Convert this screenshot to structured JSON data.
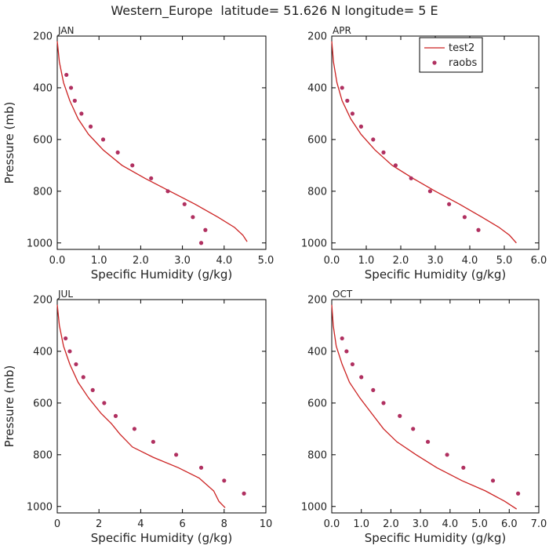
{
  "figure_title": "Western_Europe  latitude= 51.626 N longitude= 5 E",
  "colors": {
    "model": "#cc2222",
    "obs": "#b03060",
    "axis": "#000000",
    "text": "#222222"
  },
  "legend": {
    "model_label": "test2",
    "obs_label": "raobs",
    "location": "APR panel, top-right"
  },
  "chart_data": [
    {
      "type": "line",
      "panel": "JAN",
      "xlabel": "Specific Humidity (g/kg)",
      "ylabel": "Pressure (mb)",
      "xlim": [
        0,
        5.0
      ],
      "xticks": [
        0,
        1,
        2,
        3,
        4,
        5
      ],
      "xtick_labels": [
        "0.0",
        "1.0",
        "2.0",
        "3.0",
        "4.0",
        "5.0"
      ],
      "ylim": [
        200,
        1025
      ],
      "yticks": [
        200,
        400,
        600,
        800,
        1000
      ],
      "ytick_labels": [
        "200",
        "400",
        "600",
        "800",
        "1000"
      ],
      "series": [
        {
          "name": "test2",
          "kind": "line",
          "x": [
            0.0,
            0.05,
            0.15,
            0.3,
            0.5,
            0.75,
            1.1,
            1.55,
            2.1,
            2.7,
            3.3,
            3.85,
            4.25,
            4.45,
            4.55
          ],
          "y": [
            220,
            300,
            380,
            450,
            520,
            580,
            640,
            700,
            750,
            800,
            850,
            900,
            940,
            970,
            995
          ]
        },
        {
          "name": "raobs",
          "kind": "scatter",
          "x": [
            0.22,
            0.33,
            0.42,
            0.58,
            0.8,
            1.1,
            1.45,
            1.8,
            2.25,
            2.65,
            3.05,
            3.25,
            3.55,
            3.45
          ],
          "y": [
            350,
            400,
            450,
            500,
            550,
            600,
            650,
            700,
            750,
            800,
            850,
            900,
            950,
            1000
          ]
        }
      ]
    },
    {
      "type": "line",
      "panel": "APR",
      "xlabel": "Specific Humidity (g/kg)",
      "ylabel": "",
      "xlim": [
        0,
        6.0
      ],
      "xticks": [
        0,
        1,
        2,
        3,
        4,
        5,
        6
      ],
      "xtick_labels": [
        "0.0",
        "1.0",
        "2.0",
        "3.0",
        "4.0",
        "5.0",
        "6.0"
      ],
      "ylim": [
        200,
        1025
      ],
      "yticks": [
        200,
        400,
        600,
        800,
        1000
      ],
      "ytick_labels": [
        "200",
        "400",
        "600",
        "800",
        "1000"
      ],
      "show_legend": true,
      "series": [
        {
          "name": "test2",
          "kind": "line",
          "x": [
            0.0,
            0.05,
            0.15,
            0.3,
            0.55,
            0.85,
            1.25,
            1.75,
            2.35,
            3.0,
            3.7,
            4.35,
            4.85,
            5.15,
            5.35
          ],
          "y": [
            220,
            300,
            380,
            450,
            520,
            580,
            640,
            700,
            750,
            800,
            850,
            900,
            940,
            970,
            1000
          ]
        },
        {
          "name": "raobs",
          "kind": "scatter",
          "x": [
            0.3,
            0.45,
            0.6,
            0.85,
            1.2,
            1.5,
            1.85,
            2.3,
            2.85,
            3.4,
            3.85,
            4.25
          ],
          "y": [
            400,
            450,
            500,
            550,
            600,
            650,
            700,
            750,
            800,
            850,
            900,
            950
          ]
        }
      ]
    },
    {
      "type": "line",
      "panel": "JUL",
      "xlabel": "Specific Humidity (g/kg)",
      "ylabel": "Pressure (mb)",
      "xlim": [
        0,
        10
      ],
      "xticks": [
        0,
        2,
        4,
        6,
        8,
        10
      ],
      "xtick_labels": [
        "0",
        "2",
        "4",
        "6",
        "8",
        "10"
      ],
      "ylim": [
        200,
        1025
      ],
      "yticks": [
        200,
        400,
        600,
        800,
        1000
      ],
      "ytick_labels": [
        "200",
        "400",
        "600",
        "800",
        "1000"
      ],
      "series": [
        {
          "name": "test2",
          "kind": "line",
          "x": [
            0.0,
            0.1,
            0.3,
            0.6,
            1.0,
            1.5,
            2.1,
            2.6,
            3.0,
            3.6,
            4.6,
            5.8,
            6.8,
            7.5,
            7.75,
            8.05
          ],
          "y": [
            220,
            300,
            380,
            450,
            520,
            580,
            640,
            680,
            720,
            770,
            810,
            850,
            890,
            940,
            980,
            1005
          ]
        },
        {
          "name": "raobs",
          "kind": "scatter",
          "x": [
            0.4,
            0.6,
            0.9,
            1.25,
            1.7,
            2.25,
            2.8,
            3.7,
            4.6,
            5.7,
            6.9,
            8.0,
            8.95
          ],
          "y": [
            350,
            400,
            450,
            500,
            550,
            600,
            650,
            700,
            750,
            800,
            850,
            900,
            950
          ]
        }
      ]
    },
    {
      "type": "line",
      "panel": "OCT",
      "xlabel": "Specific Humidity (g/kg)",
      "ylabel": "",
      "xlim": [
        0,
        7.0
      ],
      "xticks": [
        0,
        1,
        2,
        3,
        4,
        5,
        6,
        7
      ],
      "xtick_labels": [
        "0.0",
        "1.0",
        "2.0",
        "3.0",
        "4.0",
        "5.0",
        "6.0",
        "7.0"
      ],
      "ylim": [
        200,
        1025
      ],
      "yticks": [
        200,
        400,
        600,
        800,
        1000
      ],
      "ytick_labels": [
        "200",
        "400",
        "600",
        "800",
        "1000"
      ],
      "series": [
        {
          "name": "test2",
          "kind": "line",
          "x": [
            0.0,
            0.05,
            0.15,
            0.35,
            0.6,
            0.95,
            1.35,
            1.75,
            2.2,
            2.85,
            3.55,
            4.4,
            5.2,
            5.85,
            6.25
          ],
          "y": [
            220,
            300,
            380,
            450,
            520,
            580,
            640,
            700,
            750,
            800,
            850,
            900,
            940,
            980,
            1010
          ]
        },
        {
          "name": "raobs",
          "kind": "scatter",
          "x": [
            0.35,
            0.5,
            0.7,
            1.0,
            1.4,
            1.75,
            2.3,
            2.75,
            3.25,
            3.9,
            4.45,
            5.45,
            6.3
          ],
          "y": [
            350,
            400,
            450,
            500,
            550,
            600,
            650,
            700,
            750,
            800,
            850,
            900,
            950
          ]
        }
      ]
    }
  ]
}
